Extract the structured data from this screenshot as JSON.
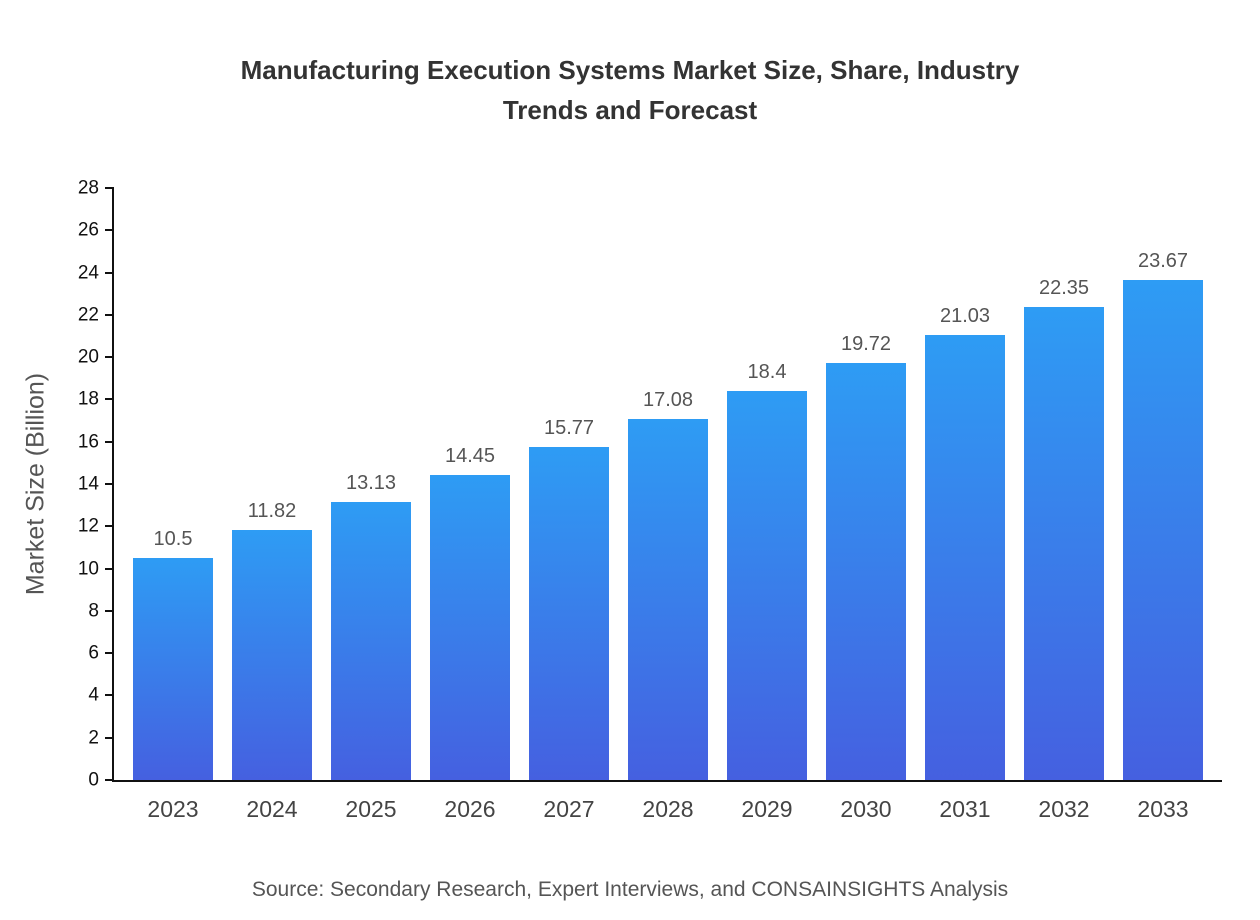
{
  "colors": {
    "bar_top": "#2E9CF4",
    "bar_bottom": "#4560E0",
    "axis": "#111111",
    "title": "#333333",
    "muted": "#555555"
  },
  "chart_data": {
    "type": "bar",
    "title": "Manufacturing Execution Systems Market Size, Share, Industry Trends and Forecast",
    "source": "Source: Secondary Research, Expert Interviews, and CONSAINSIGHTS Analysis",
    "categories": [
      "2023",
      "2024",
      "2025",
      "2026",
      "2027",
      "2028",
      "2029",
      "2030",
      "2031",
      "2032",
      "2033"
    ],
    "values": [
      10.5,
      11.82,
      13.13,
      14.45,
      15.77,
      17.08,
      18.4,
      19.72,
      21.03,
      22.35,
      23.67
    ],
    "xlabel": "",
    "ylabel": "Market Size (Billion)",
    "ylim": [
      0,
      28
    ],
    "ytick_step": 2,
    "grid": false,
    "legend": false,
    "bar_color_gradient": [
      "#2E9CF4",
      "#4560E0"
    ]
  }
}
